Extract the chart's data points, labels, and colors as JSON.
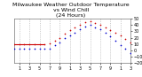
{
  "title": "Milwaukee Weather Outdoor Temperature\nvs Wind Chill\n(24 Hours)",
  "hours": [
    0,
    1,
    2,
    3,
    4,
    5,
    6,
    7,
    8,
    9,
    10,
    11,
    12,
    13,
    14,
    15,
    16,
    17,
    18,
    19,
    20,
    21,
    22,
    23
  ],
  "temp": [
    10,
    10,
    10,
    10,
    10,
    10,
    10,
    11,
    15,
    20,
    26,
    32,
    36,
    40,
    44,
    45,
    43,
    40,
    36,
    32,
    28,
    24,
    18,
    12
  ],
  "wind_chill": [
    2,
    2,
    2,
    2,
    2,
    2,
    2,
    3,
    8,
    13,
    19,
    24,
    28,
    33,
    38,
    40,
    36,
    33,
    28,
    22,
    15,
    8,
    2,
    -4
  ],
  "temp_color": "#cc0000",
  "wind_chill_color": "#0000cc",
  "ylim": [
    -20,
    50
  ],
  "yticks": [
    -20,
    -10,
    0,
    10,
    20,
    30,
    40,
    50
  ],
  "xlim": [
    0,
    23
  ],
  "xtick_positions": [
    1,
    3,
    5,
    7,
    9,
    11,
    13,
    15,
    17,
    19,
    21,
    23
  ],
  "xtick_labels": [
    "1",
    "3",
    "5",
    "7",
    "9",
    "1",
    "3",
    "5",
    "7",
    "9",
    "1",
    "3"
  ],
  "bg_color": "#ffffff",
  "grid_color": "#aaaaaa",
  "title_fontsize": 4.5,
  "tick_fontsize": 3.5,
  "flat_line_x": [
    0,
    6
  ],
  "flat_line_y": [
    10,
    10
  ]
}
